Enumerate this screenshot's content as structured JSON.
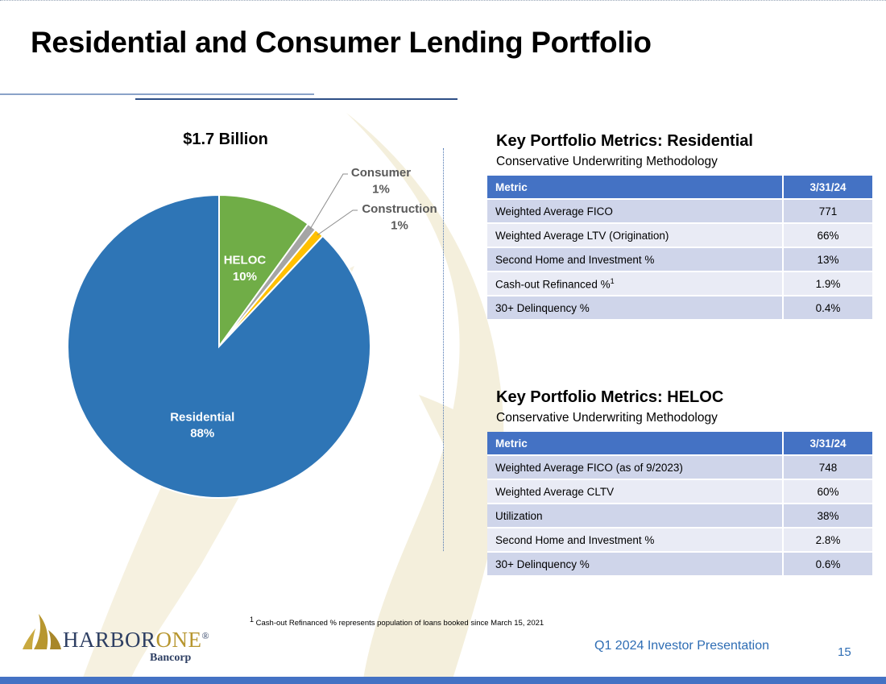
{
  "title": "Residential and Consumer Lending Portfolio",
  "chart_data": {
    "type": "pie",
    "title": "$1.7 Billion",
    "slices": [
      {
        "name": "HELOC",
        "label": "10%",
        "value": 10,
        "color": "#70ad47"
      },
      {
        "name": "Consumer",
        "label": "1%",
        "value": 1,
        "color": "#a5a5a5"
      },
      {
        "name": "Construction",
        "label": "1%",
        "value": 1,
        "color": "#ffc000"
      },
      {
        "name": "Residential",
        "label": "88%",
        "value": 88,
        "color": "#2e75b6"
      }
    ]
  },
  "residential": {
    "title": "Key Portfolio Metrics:  Residential",
    "subtitle": "Conservative Underwriting Methodology",
    "header_metric": "Metric",
    "header_date": "3/31/24",
    "rows": [
      {
        "metric": "Weighted Average FICO",
        "value": "771"
      },
      {
        "metric": "Weighted Average LTV (Origination)",
        "value": "66%"
      },
      {
        "metric": "Second Home and Investment %",
        "value": "13%"
      },
      {
        "metric": "Cash-out Refinanced %",
        "sup": "1",
        "value": "1.9%"
      },
      {
        "metric": "30+ Delinquency %",
        "value": "0.4%"
      }
    ]
  },
  "heloc": {
    "title": "Key Portfolio Metrics:  HELOC",
    "subtitle": "Conservative Underwriting Methodology",
    "header_metric": "Metric",
    "header_date": "3/31/24",
    "rows": [
      {
        "metric": "Weighted Average FICO (as of 9/2023)",
        "value": "748"
      },
      {
        "metric": "Weighted Average CLTV",
        "value": "60%"
      },
      {
        "metric": "Utilization",
        "value": "38%"
      },
      {
        "metric": "Second Home and Investment %",
        "value": "2.8%"
      },
      {
        "metric": "30+ Delinquency %",
        "value": "0.6%"
      }
    ]
  },
  "footnote": {
    "sup": "1",
    "text": " Cash-out Refinanced % represents population of loans booked since March 15, 2021"
  },
  "footer": {
    "presentation": "Q1 2024 Investor Presentation",
    "page": "15"
  },
  "logo": {
    "name_part1": "HARBOR",
    "name_part2": "ONE",
    "reg": "®",
    "sub": "Bancorp"
  },
  "colors": {
    "accent": "#4472c4",
    "sail": "#efe9d2",
    "logo_gold": "#b7962f",
    "logo_navy": "#2e3f63"
  }
}
